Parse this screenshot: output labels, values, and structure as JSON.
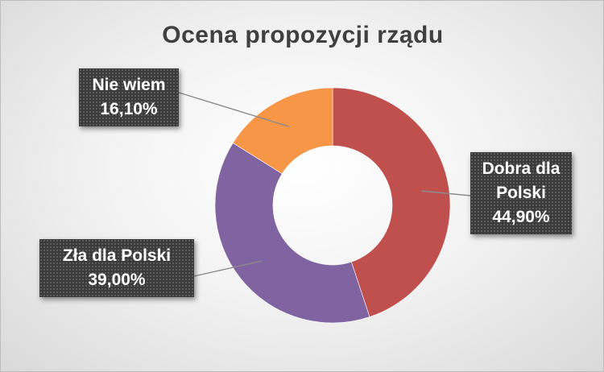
{
  "chart_data": {
    "type": "pie",
    "variant": "doughnut",
    "title": "Ocena propozycji rządu",
    "slices": [
      {
        "label_lines": [
          "Dobra dla",
          "Polski"
        ],
        "value": 44.9,
        "value_label": "44,90%",
        "color": "#c0504d"
      },
      {
        "label_lines": [
          "Zła dla Polski"
        ],
        "value": 39.0,
        "value_label": "39,00%",
        "color": "#8064a2"
      },
      {
        "label_lines": [
          "Nie wiem"
        ],
        "value": 16.1,
        "value_label": "16,10%",
        "color": "#f79646"
      }
    ]
  }
}
